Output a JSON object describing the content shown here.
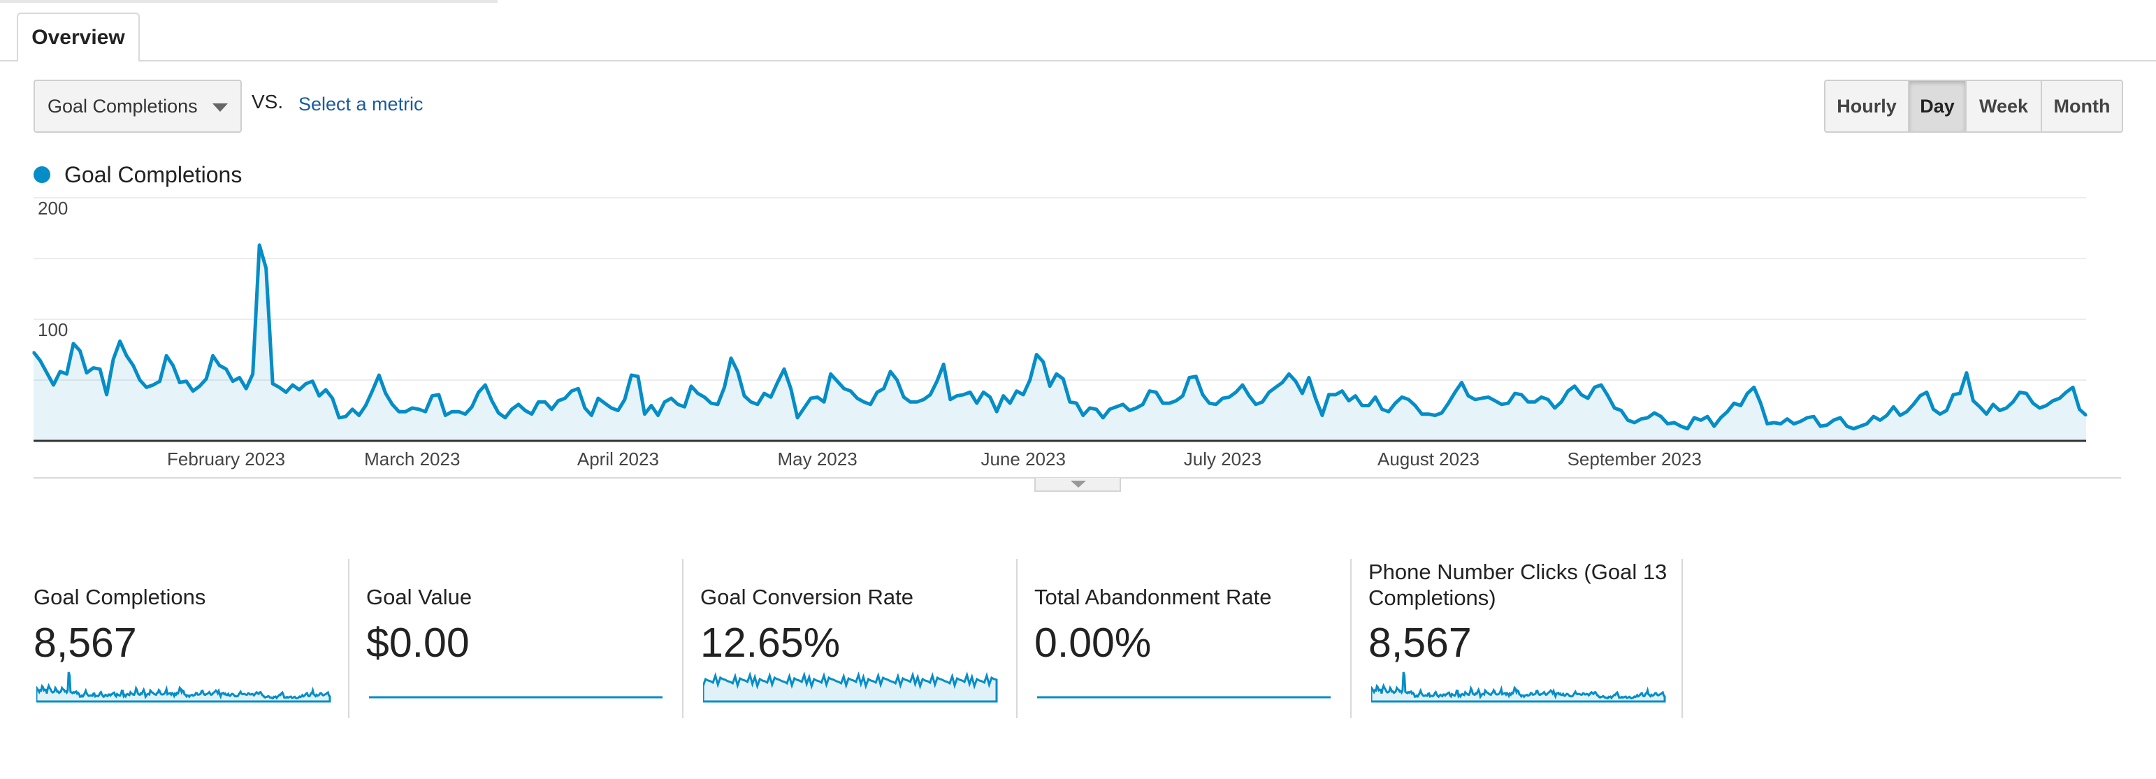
{
  "tabs": {
    "overview": "Overview"
  },
  "controls": {
    "metric_select": "Goal Completions",
    "vs": "VS.",
    "select_metric": "Select a metric",
    "granularity": [
      {
        "label": "Hourly",
        "active": false
      },
      {
        "label": "Day",
        "active": true
      },
      {
        "label": "Week",
        "active": false
      },
      {
        "label": "Month",
        "active": false
      }
    ]
  },
  "legend": {
    "series_name": "Goal Completions",
    "color": "#058dc7"
  },
  "chart_data": {
    "type": "area",
    "title": "",
    "xlabel": "",
    "ylabel": "",
    "ylim": [
      0,
      200
    ],
    "yticks": [
      100,
      200
    ],
    "x_tick_labels": [
      "February 2023",
      "March 2023",
      "April 2023",
      "May 2023",
      "June 2023",
      "July 2023",
      "August 2023",
      "September 2023"
    ],
    "series": [
      {
        "name": "Goal Completions",
        "values": [
          73,
          66,
          56,
          46,
          57,
          55,
          80,
          74,
          56,
          60,
          59,
          38,
          67,
          82,
          70,
          62,
          50,
          44,
          46,
          49,
          70,
          62,
          48,
          49,
          41,
          45,
          51,
          70,
          62,
          59,
          49,
          52,
          43,
          55,
          161,
          142,
          47,
          44,
          40,
          46,
          42,
          47,
          49,
          37,
          42,
          35,
          19,
          20,
          26,
          21,
          29,
          41,
          54,
          39,
          30,
          24,
          24,
          27,
          26,
          24,
          37,
          38,
          21,
          24,
          24,
          22,
          28,
          40,
          46,
          33,
          23,
          19,
          26,
          30,
          25,
          22,
          32,
          32,
          26,
          33,
          35,
          41,
          43,
          27,
          21,
          35,
          31,
          27,
          25,
          34,
          54,
          53,
          22,
          29,
          21,
          32,
          35,
          30,
          28,
          45,
          39,
          36,
          31,
          30,
          44,
          68,
          57,
          37,
          32,
          30,
          39,
          36,
          48,
          59,
          43,
          19,
          27,
          35,
          36,
          32,
          55,
          49,
          43,
          41,
          35,
          32,
          30,
          40,
          43,
          57,
          50,
          36,
          32,
          32,
          34,
          38,
          49,
          63,
          34,
          37,
          38,
          40,
          31,
          40,
          36,
          24,
          37,
          31,
          41,
          38,
          50,
          71,
          65,
          45,
          55,
          51,
          32,
          31,
          21,
          27,
          26,
          19,
          26,
          28,
          30,
          25,
          27,
          30,
          41,
          40,
          31,
          31,
          33,
          37,
          52,
          53,
          38,
          31,
          30,
          35,
          36,
          40,
          46,
          37,
          30,
          32,
          40,
          44,
          48,
          55,
          49,
          39,
          52,
          35,
          21,
          38,
          38,
          41,
          33,
          37,
          29,
          29,
          36,
          26,
          24,
          31,
          36,
          34,
          29,
          22,
          22,
          21,
          23,
          31,
          40,
          48,
          37,
          34,
          35,
          36,
          33,
          30,
          31,
          39,
          38,
          32,
          32,
          36,
          34,
          27,
          32,
          41,
          45,
          38,
          35,
          44,
          46,
          37,
          27,
          25,
          17,
          15,
          18,
          19,
          23,
          20,
          14,
          15,
          12,
          10,
          19,
          17,
          20,
          12,
          19,
          24,
          31,
          29,
          39,
          44,
          31,
          14,
          15,
          14,
          18,
          14,
          16,
          19,
          20,
          12,
          13,
          17,
          19,
          12,
          10,
          12,
          14,
          20,
          17,
          21,
          28,
          21,
          24,
          30,
          37,
          40,
          26,
          22,
          25,
          38,
          39,
          56,
          33,
          28,
          22,
          30,
          25,
          27,
          32,
          40,
          39,
          31,
          27,
          29,
          33,
          35,
          40,
          44,
          26,
          21
        ]
      }
    ]
  },
  "scorecards": [
    {
      "title": "Goal Completions",
      "value": "8,567"
    },
    {
      "title": "Goal Value",
      "value": "$0.00"
    },
    {
      "title": "Goal Conversion Rate",
      "value": "12.65%"
    },
    {
      "title": "Total Abandonment Rate",
      "value": "0.00%"
    },
    {
      "title": "Phone Number Clicks (Goal 13 Completions)",
      "value": "8,567"
    }
  ]
}
